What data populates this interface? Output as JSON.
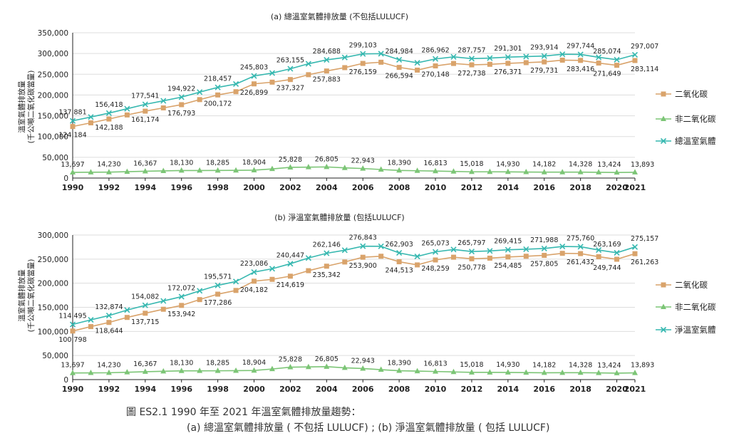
{
  "caption": {
    "line1": "圖 ES2.1    1990 年至 2021 年溫室氣體排放量趨勢：",
    "line2": "(a) 總溫室氣體排放量 ( 不包括 LULUCF) ; (b) 淨溫室氣體排放量 ( 包括 LULUCF)"
  },
  "colors": {
    "co2": "#d9a36b",
    "nonco2": "#7cc576",
    "total": "#37b8b0",
    "grid": "#dddddd",
    "axis": "#222222"
  },
  "chart_data": [
    {
      "type": "line",
      "title": "(a) 總溫室氣體排放量 (不包括LULUCF)",
      "ylabel": "溫室氣體排放量\n(千公噸二氧化碳當量)",
      "xlabel": "",
      "ylim": [
        0,
        350000
      ],
      "yticks": [
        "0",
        "50,000",
        "100,000",
        "150,000",
        "200,000",
        "250,000",
        "300,000",
        "350,000"
      ],
      "xlim": [
        1990,
        2021
      ],
      "xticks": [
        "1990",
        "1992",
        "1994",
        "1996",
        "1998",
        "2000",
        "2002",
        "2004",
        "2006",
        "2008",
        "2010",
        "2012",
        "2014",
        "2016",
        "2018",
        "2020",
        "2021"
      ],
      "legend_position": "right",
      "years": [
        1990,
        1991,
        1992,
        1993,
        1994,
        1995,
        1996,
        1997,
        1998,
        1999,
        2000,
        2001,
        2002,
        2003,
        2004,
        2005,
        2006,
        2007,
        2008,
        2009,
        2010,
        2011,
        2012,
        2013,
        2014,
        2015,
        2016,
        2017,
        2018,
        2019,
        2020,
        2021
      ],
      "series": [
        {
          "name": "二氧化碳",
          "key": "co2",
          "values": [
            124184,
            133000,
            142188,
            152000,
            161174,
            169000,
            176793,
            189000,
            200172,
            208000,
            226899,
            231000,
            237327,
            249000,
            257883,
            266000,
            276159,
            279000,
            266594,
            260000,
            270148,
            276000,
            272738,
            274000,
            276371,
            278000,
            279731,
            284000,
            283416,
            277000,
            271649,
            283114
          ]
        },
        {
          "name": "非二氧化碳",
          "key": "nonco2",
          "values": [
            13697,
            14000,
            14230,
            15300,
            16367,
            17200,
            18130,
            18200,
            18285,
            18500,
            18904,
            22000,
            25828,
            26300,
            26805,
            24500,
            22943,
            20600,
            18390,
            17600,
            16813,
            15900,
            15018,
            15000,
            14930,
            14550,
            14182,
            14250,
            14328,
            13900,
            13424,
            13893
          ]
        },
        {
          "name": "總溫室氣體",
          "key": "total",
          "values": [
            137881,
            147000,
            156418,
            167000,
            177541,
            186000,
            194922,
            207000,
            218457,
            226500,
            245803,
            253000,
            263155,
            275300,
            284688,
            290500,
            299103,
            299600,
            284984,
            277600,
            286962,
            291900,
            287757,
            289000,
            291301,
            292550,
            293914,
            298250,
            297744,
            290900,
            285074,
            297007
          ]
        }
      ],
      "labeled_years": [
        1990,
        1992,
        1994,
        1996,
        1998,
        2000,
        2002,
        2004,
        2006,
        2008,
        2010,
        2012,
        2014,
        2016,
        2018,
        2020,
        2021
      ]
    },
    {
      "type": "line",
      "title": "(b) 淨溫室氣體排放量 (包括LULUCF)",
      "ylabel": "溫室氣體排放量\n(千公噸二氧化碳當量)",
      "xlabel": "",
      "ylim": [
        0,
        300000
      ],
      "yticks": [
        "0",
        "50,000",
        "100,000",
        "150,000",
        "200,000",
        "250,000",
        "300,000"
      ],
      "xlim": [
        1990,
        2021
      ],
      "xticks": [
        "1990",
        "1992",
        "1994",
        "1996",
        "1998",
        "2000",
        "2002",
        "2004",
        "2006",
        "2008",
        "2010",
        "2012",
        "2014",
        "2016",
        "2018",
        "2020",
        "2021"
      ],
      "legend_position": "right",
      "years": [
        1990,
        1991,
        1992,
        1993,
        1994,
        1995,
        1996,
        1997,
        1998,
        1999,
        2000,
        2001,
        2002,
        2003,
        2004,
        2005,
        2006,
        2007,
        2008,
        2009,
        2010,
        2011,
        2012,
        2013,
        2014,
        2015,
        2016,
        2017,
        2018,
        2019,
        2020,
        2021
      ],
      "series": [
        {
          "name": "二氧化碳",
          "key": "co2",
          "values": [
            100798,
            110000,
            118644,
            129000,
            137715,
            146000,
            153942,
            166000,
            177286,
            185000,
            204182,
            208000,
            214619,
            226000,
            235342,
            244000,
            253900,
            256000,
            244513,
            238000,
            248259,
            254000,
            250778,
            252000,
            254485,
            256000,
            257805,
            262000,
            261432,
            255000,
            249744,
            261263
          ]
        },
        {
          "name": "非二氧化碳",
          "key": "nonco2",
          "values": [
            13697,
            14000,
            14230,
            15300,
            16367,
            17200,
            18130,
            18200,
            18285,
            18500,
            18904,
            22000,
            25828,
            26300,
            26805,
            24500,
            22943,
            20600,
            18390,
            17600,
            16813,
            15900,
            15018,
            15000,
            14930,
            14550,
            14182,
            14250,
            14328,
            13900,
            13424,
            13893
          ]
        },
        {
          "name": "淨溫室氣體",
          "key": "total",
          "values": [
            114495,
            124000,
            132874,
            144300,
            154082,
            163200,
            172072,
            184200,
            195571,
            203500,
            223086,
            230000,
            240447,
            252300,
            262146,
            268500,
            276843,
            276600,
            262903,
            255600,
            265073,
            269900,
            265797,
            267000,
            269415,
            270550,
            271988,
            276250,
            275760,
            268900,
            263169,
            275157
          ]
        }
      ],
      "labeled_years": [
        1990,
        1992,
        1994,
        1996,
        1998,
        2000,
        2002,
        2004,
        2006,
        2008,
        2010,
        2012,
        2014,
        2016,
        2018,
        2020,
        2021
      ]
    }
  ]
}
